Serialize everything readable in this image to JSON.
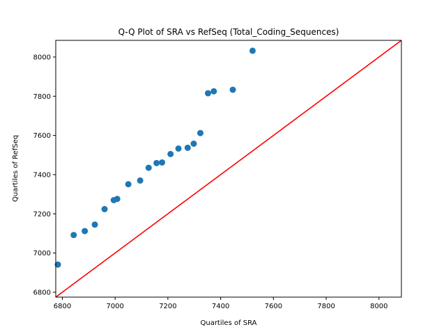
{
  "chart_data": {
    "type": "scatter",
    "title": "Q-Q Plot of SRA vs RefSeq (Total_Coding_Sequences)",
    "xlabel": "Quartiles of SRA",
    "ylabel": "Quartiles of RefSeq",
    "xlim": [
      6775,
      8085
    ],
    "ylim": [
      6775,
      8085
    ],
    "xticks": [
      6800,
      7000,
      7200,
      7400,
      7600,
      7800,
      8000
    ],
    "yticks": [
      6800,
      7000,
      7200,
      7400,
      7600,
      7800,
      8000
    ],
    "grid": false,
    "legend": "none",
    "marker_color": "#1f77b4",
    "line_color": "#ff0000",
    "reference_line": {
      "from": [
        6775,
        6775
      ],
      "to": [
        8085,
        8085
      ]
    },
    "points": [
      {
        "x": 6783,
        "y": 6941
      },
      {
        "x": 6843,
        "y": 7092
      },
      {
        "x": 6885,
        "y": 7112
      },
      {
        "x": 6923,
        "y": 7145
      },
      {
        "x": 6960,
        "y": 7224
      },
      {
        "x": 6995,
        "y": 7270
      },
      {
        "x": 7008,
        "y": 7276
      },
      {
        "x": 7050,
        "y": 7351
      },
      {
        "x": 7095,
        "y": 7370
      },
      {
        "x": 7127,
        "y": 7435
      },
      {
        "x": 7157,
        "y": 7459
      },
      {
        "x": 7178,
        "y": 7462
      },
      {
        "x": 7210,
        "y": 7505
      },
      {
        "x": 7240,
        "y": 7533
      },
      {
        "x": 7275,
        "y": 7537
      },
      {
        "x": 7298,
        "y": 7558
      },
      {
        "x": 7323,
        "y": 7612
      },
      {
        "x": 7352,
        "y": 7815
      },
      {
        "x": 7374,
        "y": 7825
      },
      {
        "x": 7446,
        "y": 7833
      },
      {
        "x": 7521,
        "y": 8032
      }
    ]
  }
}
